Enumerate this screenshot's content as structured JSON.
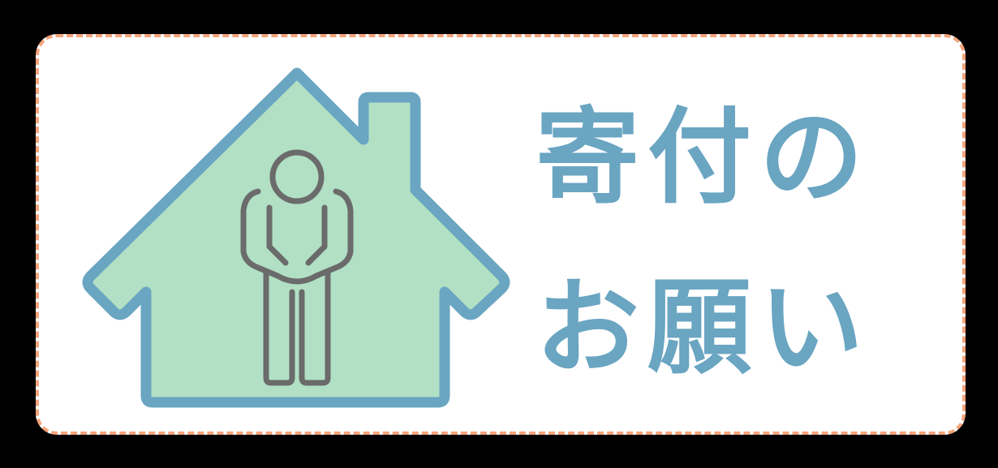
{
  "banner": {
    "title_line1": "寄付の",
    "title_line2": "お願い"
  },
  "icons": {
    "house": "house-icon",
    "person": "bowing-person-icon"
  },
  "colors": {
    "background": "#000000",
    "panel": "#ffffff",
    "dashed_border": "#f4a47c",
    "house_fill": "#b1e0c5",
    "house_stroke": "#6aa5c2",
    "person_stroke": "#6b6b6b",
    "title_text": "#6aa5c2"
  }
}
